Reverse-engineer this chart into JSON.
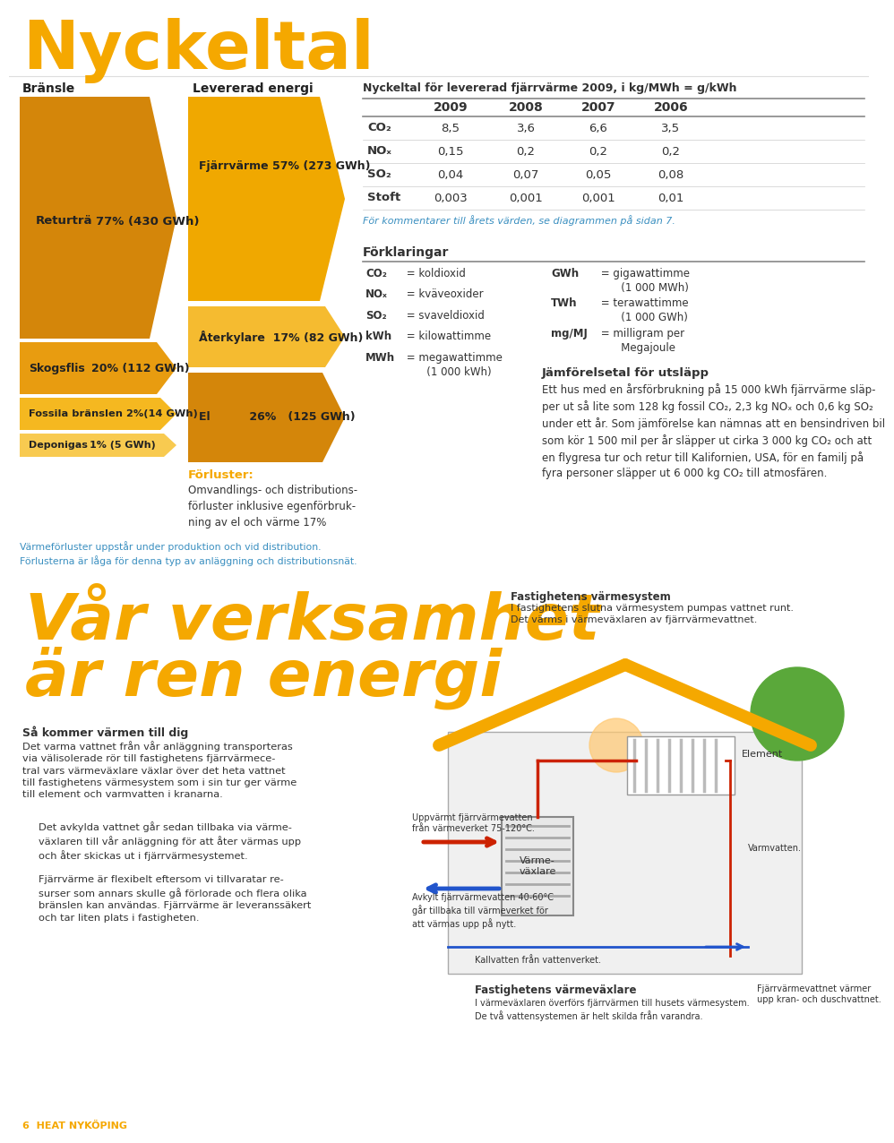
{
  "title": "Nyckeltal",
  "title_color": "#F5A800",
  "bg_color": "#FFFFFF",
  "col_bransle_dark": "#D4860A",
  "col_bransle_mid": "#E89C10",
  "col_bransle_light": "#F5B820",
  "col_bransle_lighter": "#F8CA50",
  "col_levererad_large": "#F0A800",
  "col_levererad_med": "#F5BB30",
  "col_levererad_el": "#D4860A",
  "table_title": "Nyckeltal för levererad fjärrvärme 2009, i kg/MWh = g/kWh",
  "table_headers": [
    "",
    "2009",
    "2008",
    "2007",
    "2006"
  ],
  "table_rows": [
    [
      "CO₂",
      "8,5",
      "3,6",
      "6,6",
      "3,5"
    ],
    [
      "NOₓ",
      "0,15",
      "0,2",
      "0,2",
      "0,2"
    ],
    [
      "SO₂",
      "0,04",
      "0,07",
      "0,05",
      "0,08"
    ],
    [
      "Stoft",
      "0,003",
      "0,001",
      "0,001",
      "0,01"
    ]
  ],
  "table_note": "För kommentarer till årets värden, se diagrammen på sidan 7.",
  "forklaringar_title": "Förklaringar",
  "forklaringar_left": [
    [
      "CO₂",
      " = koldioxid"
    ],
    [
      "NOₓ",
      " = kväveoxider"
    ],
    [
      "SO₂",
      " = svaveldioxid"
    ],
    [
      "kWh",
      " = kilowattimme"
    ],
    [
      "MWh",
      " = megawattimme\n       (1 000 kWh)"
    ]
  ],
  "forklaringar_right": [
    [
      "GWh",
      " = gigawattimme\n       (1 000 MWh)"
    ],
    [
      "TWh",
      " = terawattimme\n       (1 000 GWh)"
    ],
    [
      "mg/MJ",
      " = milligram per\n       Megajoule"
    ]
  ],
  "jamfor_title": "Jämförelsetal för utsläpp",
  "jamfor_text": "Ett hus med en årsförbrukning på 15 000 kWh fjärrvärme släp-\nper ut så lite som 128 kg fossil CO₂, 2,3 kg NOₓ och 0,6 kg SO₂\nunder ett år. Som jämförelse kan nämnas att en bensindriven bil\nsom kör 1 500 mil per år släpper ut cirka 3 000 kg CO₂ och att\nen flygresa tur och retur till Kalifornien, USA, för en familj på\nfyra personer släpper ut 6 000 kg CO₂ till atmosfären.",
  "forluster_title": "Förluster:",
  "forluster_text": "Omvandlings- och distributions-\nförluster inklusive egenförbruk-\nning av el och värme 17%",
  "varmef_text": "Värmeförluster uppstår under produktion och vid distribution.\nFörlusterna är låga för denna typ av anläggning och distributionsnät.",
  "page2_title1": "Vår verksamhet",
  "page2_title2": "är ren energi",
  "page2_title_color": "#F5A800",
  "fastighetens_title": "Fastighetens värmesystem",
  "fastighetens_text": "I fastighetens slutna värmesystem pumpas vattnet runt.\nDet värms i värmeväxlaren av fjärrvärmevattnet.",
  "sa_kommer_title": "Så kommer värmen till dig",
  "sa_kommer_text1": "Det varma vattnet från vår anläggning transporteras\nvia välisolerade rör till fastighetens fjärrvärmece-\ntral vars värmeväxlare växlar över det heta vattnet\ntill fastighetens värmesystem som i sin tur ger värme\ntill element och varmvatten i kranarna.",
  "sa_kommer_text2": "Det avkylda vattnet går sedan tillbaka via värme-\nväxlaren till vår anläggning för att åter värmas upp\noch åter skickas ut i fjärrvärmesystemet.",
  "sa_kommer_text3": "Fjärrvärme är flexibelt eftersom vi tillvaratar re-\nsurser som annars skulle gå förlorade och flera olika\nbränslen kan användas. Fjärrvärme är leveranssäkert\noch tar liten plats i fastigheten.",
  "footer": "6  HEAT NYKÖPING",
  "footer_color": "#F5A800",
  "orange_line_color": "#F5A800",
  "red_pipe": "#CC2200",
  "blue_pipe": "#2255CC"
}
